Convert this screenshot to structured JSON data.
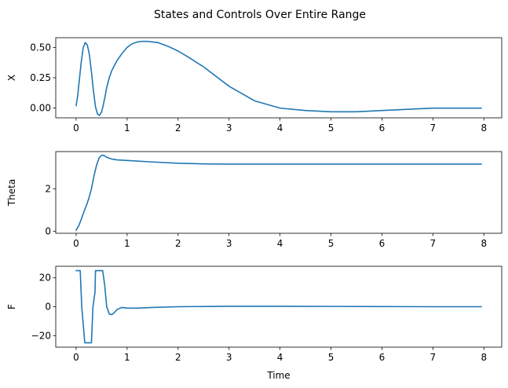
{
  "chart_data": {
    "type": "line",
    "title": "States and Controls Over Entire Range",
    "xlabel": "Time",
    "line_color": "#1f77b4",
    "panels": [
      {
        "ylabel": "X",
        "xlim": [
          -0.4,
          8.35
        ],
        "ylim": [
          -0.08,
          0.58
        ],
        "xticks": [
          0,
          1,
          2,
          3,
          4,
          5,
          6,
          7,
          8
        ],
        "xtick_labels": [
          "0",
          "1",
          "2",
          "3",
          "4",
          "5",
          "6",
          "7",
          "8"
        ],
        "yticks": [
          0,
          0.25,
          0.5
        ],
        "ytick_labels": [
          "0.00",
          "0.25",
          "0.50"
        ],
        "x": [
          0,
          0.03,
          0.06,
          0.1,
          0.14,
          0.18,
          0.22,
          0.26,
          0.3,
          0.34,
          0.38,
          0.42,
          0.46,
          0.5,
          0.53,
          0.56,
          0.6,
          0.65,
          0.7,
          0.8,
          0.9,
          1.0,
          1.1,
          1.2,
          1.3,
          1.4,
          1.5,
          1.6,
          1.8,
          2.0,
          2.2,
          2.5,
          3.0,
          3.5,
          4.0,
          4.5,
          5.0,
          5.5,
          6.0,
          6.5,
          7.0,
          7.5,
          7.95
        ],
        "y": [
          0.02,
          0.1,
          0.22,
          0.38,
          0.5,
          0.54,
          0.52,
          0.44,
          0.3,
          0.14,
          0.01,
          -0.05,
          -0.06,
          -0.03,
          0.02,
          0.08,
          0.17,
          0.25,
          0.31,
          0.39,
          0.45,
          0.5,
          0.53,
          0.545,
          0.55,
          0.55,
          0.545,
          0.54,
          0.51,
          0.47,
          0.42,
          0.34,
          0.18,
          0.06,
          0.0,
          -0.02,
          -0.03,
          -0.03,
          -0.02,
          -0.01,
          0.0,
          0.0,
          0.0
        ]
      },
      {
        "ylabel": "Theta",
        "xlim": [
          -0.4,
          8.35
        ],
        "ylim": [
          -0.1,
          3.75
        ],
        "xticks": [
          0,
          1,
          2,
          3,
          4,
          5,
          6,
          7,
          8
        ],
        "xtick_labels": [
          "0",
          "1",
          "2",
          "3",
          "4",
          "5",
          "6",
          "7",
          "8"
        ],
        "yticks": [
          0,
          2
        ],
        "ytick_labels": [
          "0",
          "2"
        ],
        "x": [
          0,
          0.05,
          0.1,
          0.15,
          0.2,
          0.25,
          0.3,
          0.35,
          0.4,
          0.45,
          0.5,
          0.53,
          0.56,
          0.6,
          0.7,
          0.8,
          1.0,
          1.5,
          2.0,
          2.5,
          3.0,
          3.5,
          4.0,
          5.0,
          6.0,
          7.0,
          7.95
        ],
        "y": [
          0.05,
          0.25,
          0.55,
          0.9,
          1.2,
          1.55,
          2.0,
          2.6,
          3.1,
          3.45,
          3.57,
          3.58,
          3.55,
          3.48,
          3.4,
          3.36,
          3.33,
          3.26,
          3.2,
          3.17,
          3.16,
          3.16,
          3.16,
          3.16,
          3.16,
          3.16,
          3.16
        ]
      },
      {
        "ylabel": "F",
        "xlim": [
          -0.4,
          8.35
        ],
        "ylim": [
          -28,
          28
        ],
        "xticks": [
          0,
          1,
          2,
          3,
          4,
          5,
          6,
          7,
          8
        ],
        "xtick_labels": [
          "0",
          "1",
          "2",
          "3",
          "4",
          "5",
          "6",
          "7",
          "8"
        ],
        "yticks": [
          -20,
          0,
          20
        ],
        "ytick_labels": [
          "−20",
          "0",
          "20"
        ],
        "x": [
          0,
          0.08,
          0.11,
          0.17,
          0.3,
          0.33,
          0.37,
          0.38,
          0.52,
          0.56,
          0.6,
          0.65,
          0.7,
          0.75,
          0.8,
          0.9,
          1.0,
          1.2,
          1.5,
          2.0,
          3.0,
          4.0,
          5.0,
          6.0,
          7.0,
          7.95
        ],
        "y": [
          25,
          25,
          0,
          -25,
          -25,
          0,
          10,
          25,
          25,
          15,
          0,
          -5,
          -5.5,
          -4,
          -2,
          -0.5,
          -1,
          -1,
          -0.5,
          0,
          0.3,
          0.3,
          0.2,
          0.1,
          0.0,
          0.0
        ]
      }
    ]
  }
}
